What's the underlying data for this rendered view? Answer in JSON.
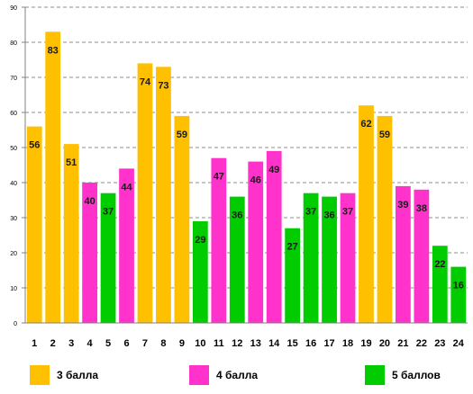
{
  "chart_data": {
    "type": "bar",
    "categories": [
      "1",
      "2",
      "3",
      "4",
      "5",
      "6",
      "7",
      "8",
      "9",
      "10",
      "11",
      "12",
      "13",
      "14",
      "15",
      "16",
      "17",
      "18",
      "19",
      "20",
      "21",
      "22",
      "23",
      "24"
    ],
    "values": [
      56,
      83,
      51,
      40,
      37,
      44,
      74,
      73,
      59,
      29,
      47,
      36,
      46,
      49,
      27,
      37,
      36,
      37,
      62,
      59,
      39,
      38,
      22,
      16
    ],
    "groups": [
      "3 балла",
      "3 балла",
      "3 балла",
      "4 балла",
      "5 баллов",
      "4 балла",
      "3 балла",
      "3 балла",
      "3 балла",
      "5 баллов",
      "4 балла",
      "5 баллов",
      "4 балла",
      "4 балла",
      "5 баллов",
      "5 баллов",
      "5 баллов",
      "4 балла",
      "3 балла",
      "3 балла",
      "4 балла",
      "4 балла",
      "5 баллов",
      "5 баллов"
    ],
    "legend": [
      {
        "name": "3 балла",
        "color": "#FFC000"
      },
      {
        "name": "4 балла",
        "color": "#FF33CC"
      },
      {
        "name": "5 баллов",
        "color": "#00CC00"
      }
    ],
    "y_ticks": [
      "0",
      "10",
      "20",
      "30",
      "40",
      "50",
      "60",
      "70",
      "80",
      "90"
    ],
    "ylim": [
      0,
      90
    ],
    "grid": true,
    "legend_position": "bottom"
  }
}
